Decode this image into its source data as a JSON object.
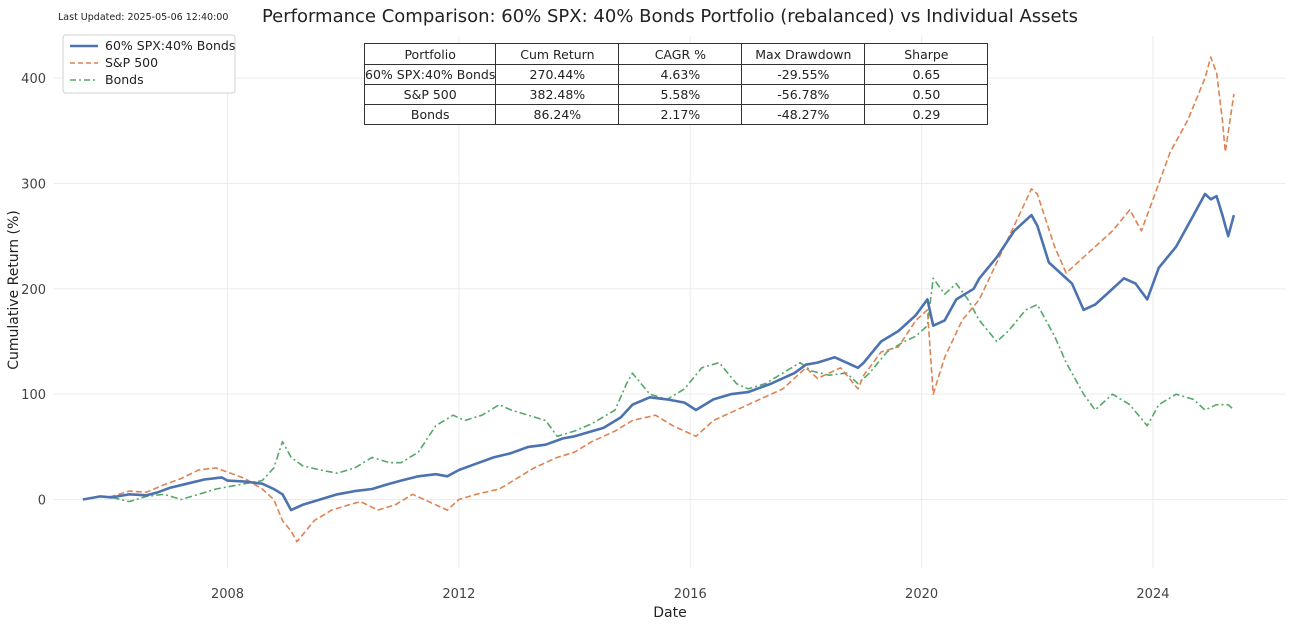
{
  "header": {
    "last_updated": "Last Updated: 2025-05-06 12:40:00"
  },
  "chart_data": {
    "type": "line",
    "title": "Performance Comparison: 60% SPX: 40% Bonds Portfolio (rebalanced) vs Individual Assets",
    "xlabel": "Date",
    "ylabel": "Cumulative Return (%)",
    "xlim": [
      2005.0,
      2026.3
    ],
    "ylim": [
      -65,
      440
    ],
    "x_ticks": [
      2008,
      2012,
      2016,
      2020,
      2024
    ],
    "y_ticks": [
      0,
      100,
      200,
      300,
      400
    ],
    "grid": true,
    "legend_position": "top-left",
    "colors": {
      "sixty_forty": "#4c72b0",
      "sp500": "#dd8452",
      "bonds": "#55a868"
    },
    "series": [
      {
        "name": "60% SPX:40% Bonds",
        "style": "solid",
        "points": [
          [
            2005.5,
            0
          ],
          [
            2005.8,
            3
          ],
          [
            2006.0,
            2
          ],
          [
            2006.3,
            5
          ],
          [
            2006.6,
            4
          ],
          [
            2006.8,
            7
          ],
          [
            2007.0,
            11
          ],
          [
            2007.3,
            15
          ],
          [
            2007.6,
            19
          ],
          [
            2007.9,
            21
          ],
          [
            2008.0,
            18
          ],
          [
            2008.3,
            17
          ],
          [
            2008.6,
            15
          ],
          [
            2008.8,
            10
          ],
          [
            2008.95,
            5
          ],
          [
            2009.1,
            -10
          ],
          [
            2009.3,
            -5
          ],
          [
            2009.6,
            0
          ],
          [
            2009.9,
            5
          ],
          [
            2010.2,
            8
          ],
          [
            2010.5,
            10
          ],
          [
            2010.8,
            15
          ],
          [
            2011.0,
            18
          ],
          [
            2011.3,
            22
          ],
          [
            2011.6,
            24
          ],
          [
            2011.8,
            22
          ],
          [
            2012.0,
            28
          ],
          [
            2012.3,
            34
          ],
          [
            2012.6,
            40
          ],
          [
            2012.9,
            44
          ],
          [
            2013.2,
            50
          ],
          [
            2013.5,
            52
          ],
          [
            2013.8,
            58
          ],
          [
            2014.0,
            60
          ],
          [
            2014.5,
            68
          ],
          [
            2014.8,
            78
          ],
          [
            2015.0,
            90
          ],
          [
            2015.3,
            97
          ],
          [
            2015.6,
            95
          ],
          [
            2015.9,
            92
          ],
          [
            2016.1,
            85
          ],
          [
            2016.4,
            95
          ],
          [
            2016.7,
            100
          ],
          [
            2017.0,
            102
          ],
          [
            2017.4,
            110
          ],
          [
            2017.8,
            120
          ],
          [
            2018.0,
            128
          ],
          [
            2018.2,
            130
          ],
          [
            2018.5,
            135
          ],
          [
            2018.9,
            125
          ],
          [
            2019.0,
            130
          ],
          [
            2019.3,
            150
          ],
          [
            2019.6,
            160
          ],
          [
            2019.9,
            175
          ],
          [
            2020.1,
            190
          ],
          [
            2020.2,
            165
          ],
          [
            2020.4,
            170
          ],
          [
            2020.6,
            190
          ],
          [
            2020.9,
            200
          ],
          [
            2021.0,
            210
          ],
          [
            2021.3,
            230
          ],
          [
            2021.6,
            255
          ],
          [
            2021.9,
            270
          ],
          [
            2022.0,
            260
          ],
          [
            2022.2,
            225
          ],
          [
            2022.4,
            215
          ],
          [
            2022.6,
            205
          ],
          [
            2022.8,
            180
          ],
          [
            2023.0,
            185
          ],
          [
            2023.2,
            195
          ],
          [
            2023.5,
            210
          ],
          [
            2023.7,
            205
          ],
          [
            2023.9,
            190
          ],
          [
            2024.1,
            220
          ],
          [
            2024.4,
            240
          ],
          [
            2024.7,
            270
          ],
          [
            2024.9,
            290
          ],
          [
            2025.0,
            285
          ],
          [
            2025.1,
            288
          ],
          [
            2025.2,
            270
          ],
          [
            2025.3,
            250
          ],
          [
            2025.4,
            270
          ]
        ]
      },
      {
        "name": "S&P 500",
        "style": "dashed",
        "points": [
          [
            2005.5,
            0
          ],
          [
            2005.8,
            3
          ],
          [
            2006.0,
            3
          ],
          [
            2006.3,
            8
          ],
          [
            2006.6,
            7
          ],
          [
            2006.9,
            14
          ],
          [
            2007.2,
            20
          ],
          [
            2007.5,
            28
          ],
          [
            2007.8,
            30
          ],
          [
            2008.0,
            26
          ],
          [
            2008.3,
            20
          ],
          [
            2008.6,
            10
          ],
          [
            2008.8,
            0
          ],
          [
            2008.95,
            -20
          ],
          [
            2009.1,
            -30
          ],
          [
            2009.2,
            -40
          ],
          [
            2009.5,
            -20
          ],
          [
            2009.8,
            -10
          ],
          [
            2010.1,
            -5
          ],
          [
            2010.3,
            -2
          ],
          [
            2010.6,
            -10
          ],
          [
            2010.9,
            -5
          ],
          [
            2011.2,
            5
          ],
          [
            2011.6,
            -5
          ],
          [
            2011.8,
            -10
          ],
          [
            2012.0,
            0
          ],
          [
            2012.3,
            5
          ],
          [
            2012.7,
            10
          ],
          [
            2013.0,
            20
          ],
          [
            2013.3,
            30
          ],
          [
            2013.7,
            40
          ],
          [
            2014.0,
            45
          ],
          [
            2014.3,
            55
          ],
          [
            2014.7,
            65
          ],
          [
            2015.0,
            75
          ],
          [
            2015.4,
            80
          ],
          [
            2015.7,
            70
          ],
          [
            2016.1,
            60
          ],
          [
            2016.4,
            75
          ],
          [
            2016.8,
            85
          ],
          [
            2017.2,
            95
          ],
          [
            2017.6,
            105
          ],
          [
            2018.0,
            125
          ],
          [
            2018.2,
            115
          ],
          [
            2018.6,
            125
          ],
          [
            2018.9,
            105
          ],
          [
            2019.0,
            118
          ],
          [
            2019.3,
            140
          ],
          [
            2019.6,
            145
          ],
          [
            2019.9,
            170
          ],
          [
            2020.1,
            180
          ],
          [
            2020.2,
            100
          ],
          [
            2020.4,
            135
          ],
          [
            2020.7,
            170
          ],
          [
            2021.0,
            190
          ],
          [
            2021.3,
            225
          ],
          [
            2021.6,
            260
          ],
          [
            2021.9,
            295
          ],
          [
            2022.0,
            290
          ],
          [
            2022.3,
            240
          ],
          [
            2022.5,
            215
          ],
          [
            2022.8,
            230
          ],
          [
            2023.0,
            240
          ],
          [
            2023.3,
            255
          ],
          [
            2023.6,
            275
          ],
          [
            2023.8,
            255
          ],
          [
            2024.0,
            285
          ],
          [
            2024.3,
            330
          ],
          [
            2024.6,
            360
          ],
          [
            2024.9,
            400
          ],
          [
            2025.0,
            420
          ],
          [
            2025.1,
            405
          ],
          [
            2025.2,
            360
          ],
          [
            2025.25,
            330
          ],
          [
            2025.4,
            385
          ]
        ]
      },
      {
        "name": "Bonds",
        "style": "dashdot",
        "points": [
          [
            2005.5,
            0
          ],
          [
            2005.8,
            3
          ],
          [
            2006.0,
            2
          ],
          [
            2006.3,
            -2
          ],
          [
            2006.6,
            3
          ],
          [
            2006.9,
            5
          ],
          [
            2007.2,
            0
          ],
          [
            2007.5,
            5
          ],
          [
            2007.8,
            10
          ],
          [
            2008.0,
            12
          ],
          [
            2008.3,
            15
          ],
          [
            2008.6,
            18
          ],
          [
            2008.8,
            30
          ],
          [
            2008.95,
            55
          ],
          [
            2009.1,
            40
          ],
          [
            2009.3,
            32
          ],
          [
            2009.6,
            28
          ],
          [
            2009.9,
            25
          ],
          [
            2010.2,
            30
          ],
          [
            2010.5,
            40
          ],
          [
            2010.8,
            35
          ],
          [
            2011.0,
            35
          ],
          [
            2011.3,
            45
          ],
          [
            2011.6,
            70
          ],
          [
            2011.9,
            80
          ],
          [
            2012.1,
            75
          ],
          [
            2012.4,
            80
          ],
          [
            2012.7,
            90
          ],
          [
            2012.9,
            85
          ],
          [
            2013.2,
            80
          ],
          [
            2013.5,
            75
          ],
          [
            2013.7,
            60
          ],
          [
            2014.0,
            65
          ],
          [
            2014.3,
            72
          ],
          [
            2014.7,
            85
          ],
          [
            2014.9,
            110
          ],
          [
            2015.0,
            120
          ],
          [
            2015.3,
            100
          ],
          [
            2015.6,
            95
          ],
          [
            2015.9,
            105
          ],
          [
            2016.2,
            125
          ],
          [
            2016.5,
            130
          ],
          [
            2016.8,
            110
          ],
          [
            2017.0,
            105
          ],
          [
            2017.3,
            110
          ],
          [
            2017.6,
            120
          ],
          [
            2017.9,
            130
          ],
          [
            2018.1,
            122
          ],
          [
            2018.4,
            118
          ],
          [
            2018.7,
            120
          ],
          [
            2018.9,
            110
          ],
          [
            2019.1,
            120
          ],
          [
            2019.4,
            140
          ],
          [
            2019.7,
            150
          ],
          [
            2019.9,
            155
          ],
          [
            2020.1,
            165
          ],
          [
            2020.2,
            210
          ],
          [
            2020.4,
            195
          ],
          [
            2020.6,
            205
          ],
          [
            2020.8,
            190
          ],
          [
            2021.0,
            170
          ],
          [
            2021.3,
            150
          ],
          [
            2021.5,
            160
          ],
          [
            2021.8,
            180
          ],
          [
            2022.0,
            185
          ],
          [
            2022.3,
            155
          ],
          [
            2022.5,
            130
          ],
          [
            2022.8,
            100
          ],
          [
            2023.0,
            85
          ],
          [
            2023.3,
            100
          ],
          [
            2023.6,
            90
          ],
          [
            2023.9,
            70
          ],
          [
            2024.1,
            90
          ],
          [
            2024.4,
            100
          ],
          [
            2024.7,
            95
          ],
          [
            2024.9,
            85
          ],
          [
            2025.1,
            90
          ],
          [
            2025.3,
            90
          ],
          [
            2025.4,
            85
          ]
        ]
      }
    ],
    "table": {
      "columns": [
        "Portfolio",
        "Cum Return",
        "CAGR %",
        "Max Drawdown",
        "Sharpe"
      ],
      "rows": [
        [
          "60% SPX:40% Bonds",
          "270.44%",
          "4.63%",
          "-29.55%",
          "0.65"
        ],
        [
          "S&P 500",
          "382.48%",
          "5.58%",
          "-56.78%",
          "0.50"
        ],
        [
          "Bonds",
          "86.24%",
          "2.17%",
          "-48.27%",
          "0.29"
        ]
      ]
    }
  }
}
